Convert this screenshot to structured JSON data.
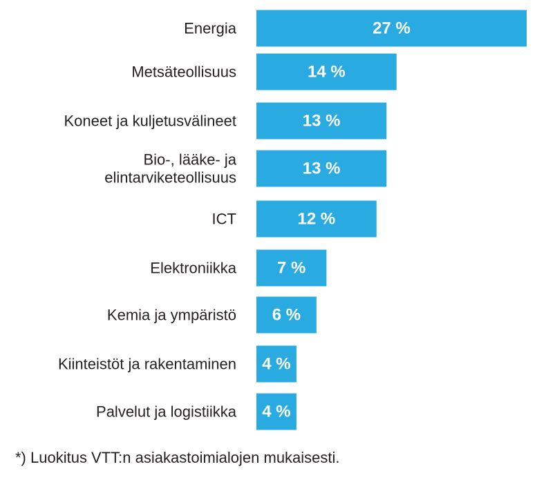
{
  "chart_data": {
    "type": "bar",
    "orientation": "horizontal",
    "title": "",
    "xlabel": "",
    "ylabel": "",
    "unit": "%",
    "grid": false,
    "legend": "none",
    "categories": [
      [
        "Energia"
      ],
      [
        "Metsäteollisuus"
      ],
      [
        "Koneet ja kuljetusvälineet"
      ],
      [
        "Bio-, lääke- ja",
        "elintarviketeollisuus"
      ],
      [
        "ICT"
      ],
      [
        "Elektroniikka"
      ],
      [
        "Kemia ja ympäristö"
      ],
      [
        "Kiinteistöt ja rakentaminen"
      ],
      [
        "Palvelut ja logistiikka"
      ]
    ],
    "values": [
      27,
      14,
      13,
      13,
      12,
      7,
      6,
      4,
      4
    ],
    "value_labels": [
      "27 %",
      "14 %",
      "13 %",
      "13 %",
      "12 %",
      "7 %",
      "6 %",
      "4 %",
      "4 %"
    ],
    "bar_color": "#29abe2",
    "label_color": "#231f20",
    "value_label_color": "#ffffff"
  },
  "footnote": "*) Luokitus VTT:n asiakastoimialojen mukaisesti."
}
